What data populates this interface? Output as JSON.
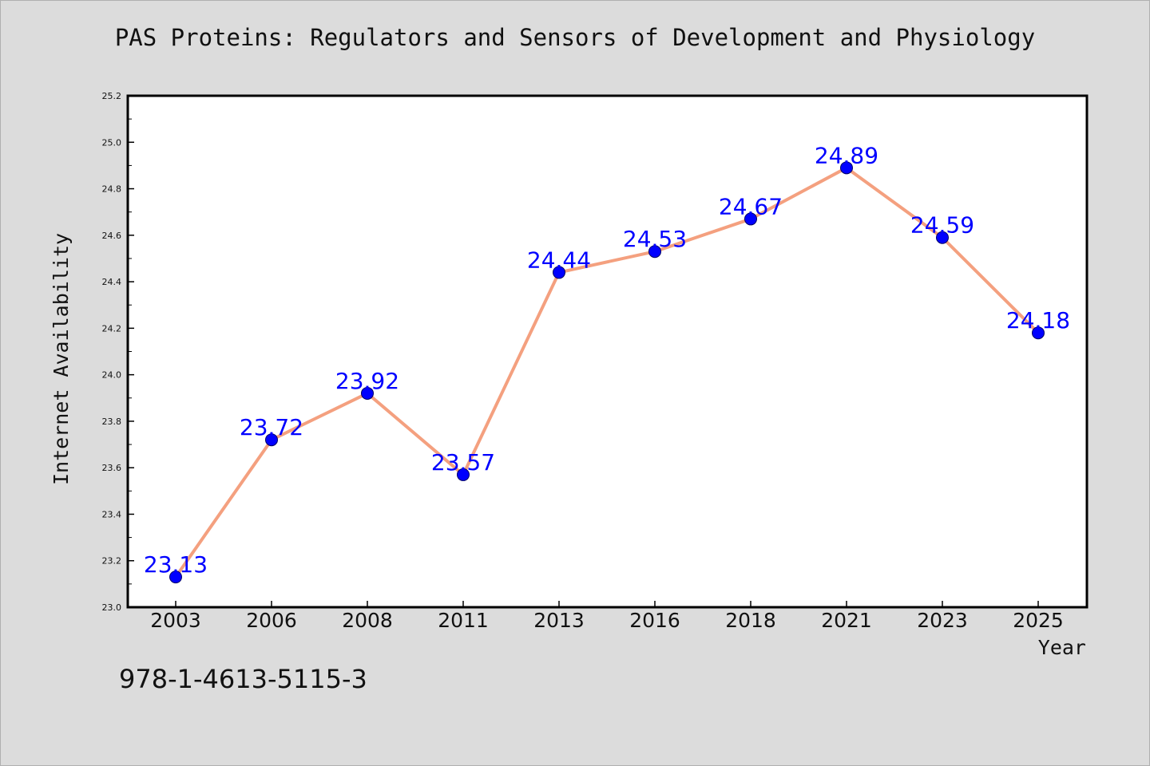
{
  "colors": {
    "background": "#dcdcdc",
    "plot_background": "#ffffff",
    "line": "#f4a07f",
    "marker": "#0000ff",
    "data_label": "#0000ff",
    "axis": "#000000"
  },
  "page": {
    "isbn": "978-1-4613-5115-3"
  },
  "chart_data": {
    "type": "line",
    "title": "PAS Proteins: Regulators and Sensors of Development and Physiology",
    "xlabel": "Year",
    "ylabel": "Internet Availability",
    "categories": [
      "2003",
      "2006",
      "2008",
      "2011",
      "2013",
      "2016",
      "2018",
      "2021",
      "2023",
      "2025"
    ],
    "series": [
      {
        "values": [
          23.13,
          23.72,
          23.92,
          23.57,
          24.44,
          24.53,
          24.67,
          24.89,
          24.59,
          24.18
        ],
        "data_labels": [
          "23.13",
          "23.72",
          "23.92",
          "23.57",
          "24.44",
          "24.53",
          "24.67",
          "24.89",
          "24.59",
          "24.18"
        ]
      }
    ],
    "ylim": [
      23.0,
      25.2
    ],
    "yticks": [
      "23.0",
      "23.2",
      "23.4",
      "23.6",
      "23.8",
      "24.0",
      "24.2",
      "24.4",
      "24.6",
      "24.8",
      "25.0",
      "25.2"
    ],
    "grid": false,
    "legend": "none"
  }
}
